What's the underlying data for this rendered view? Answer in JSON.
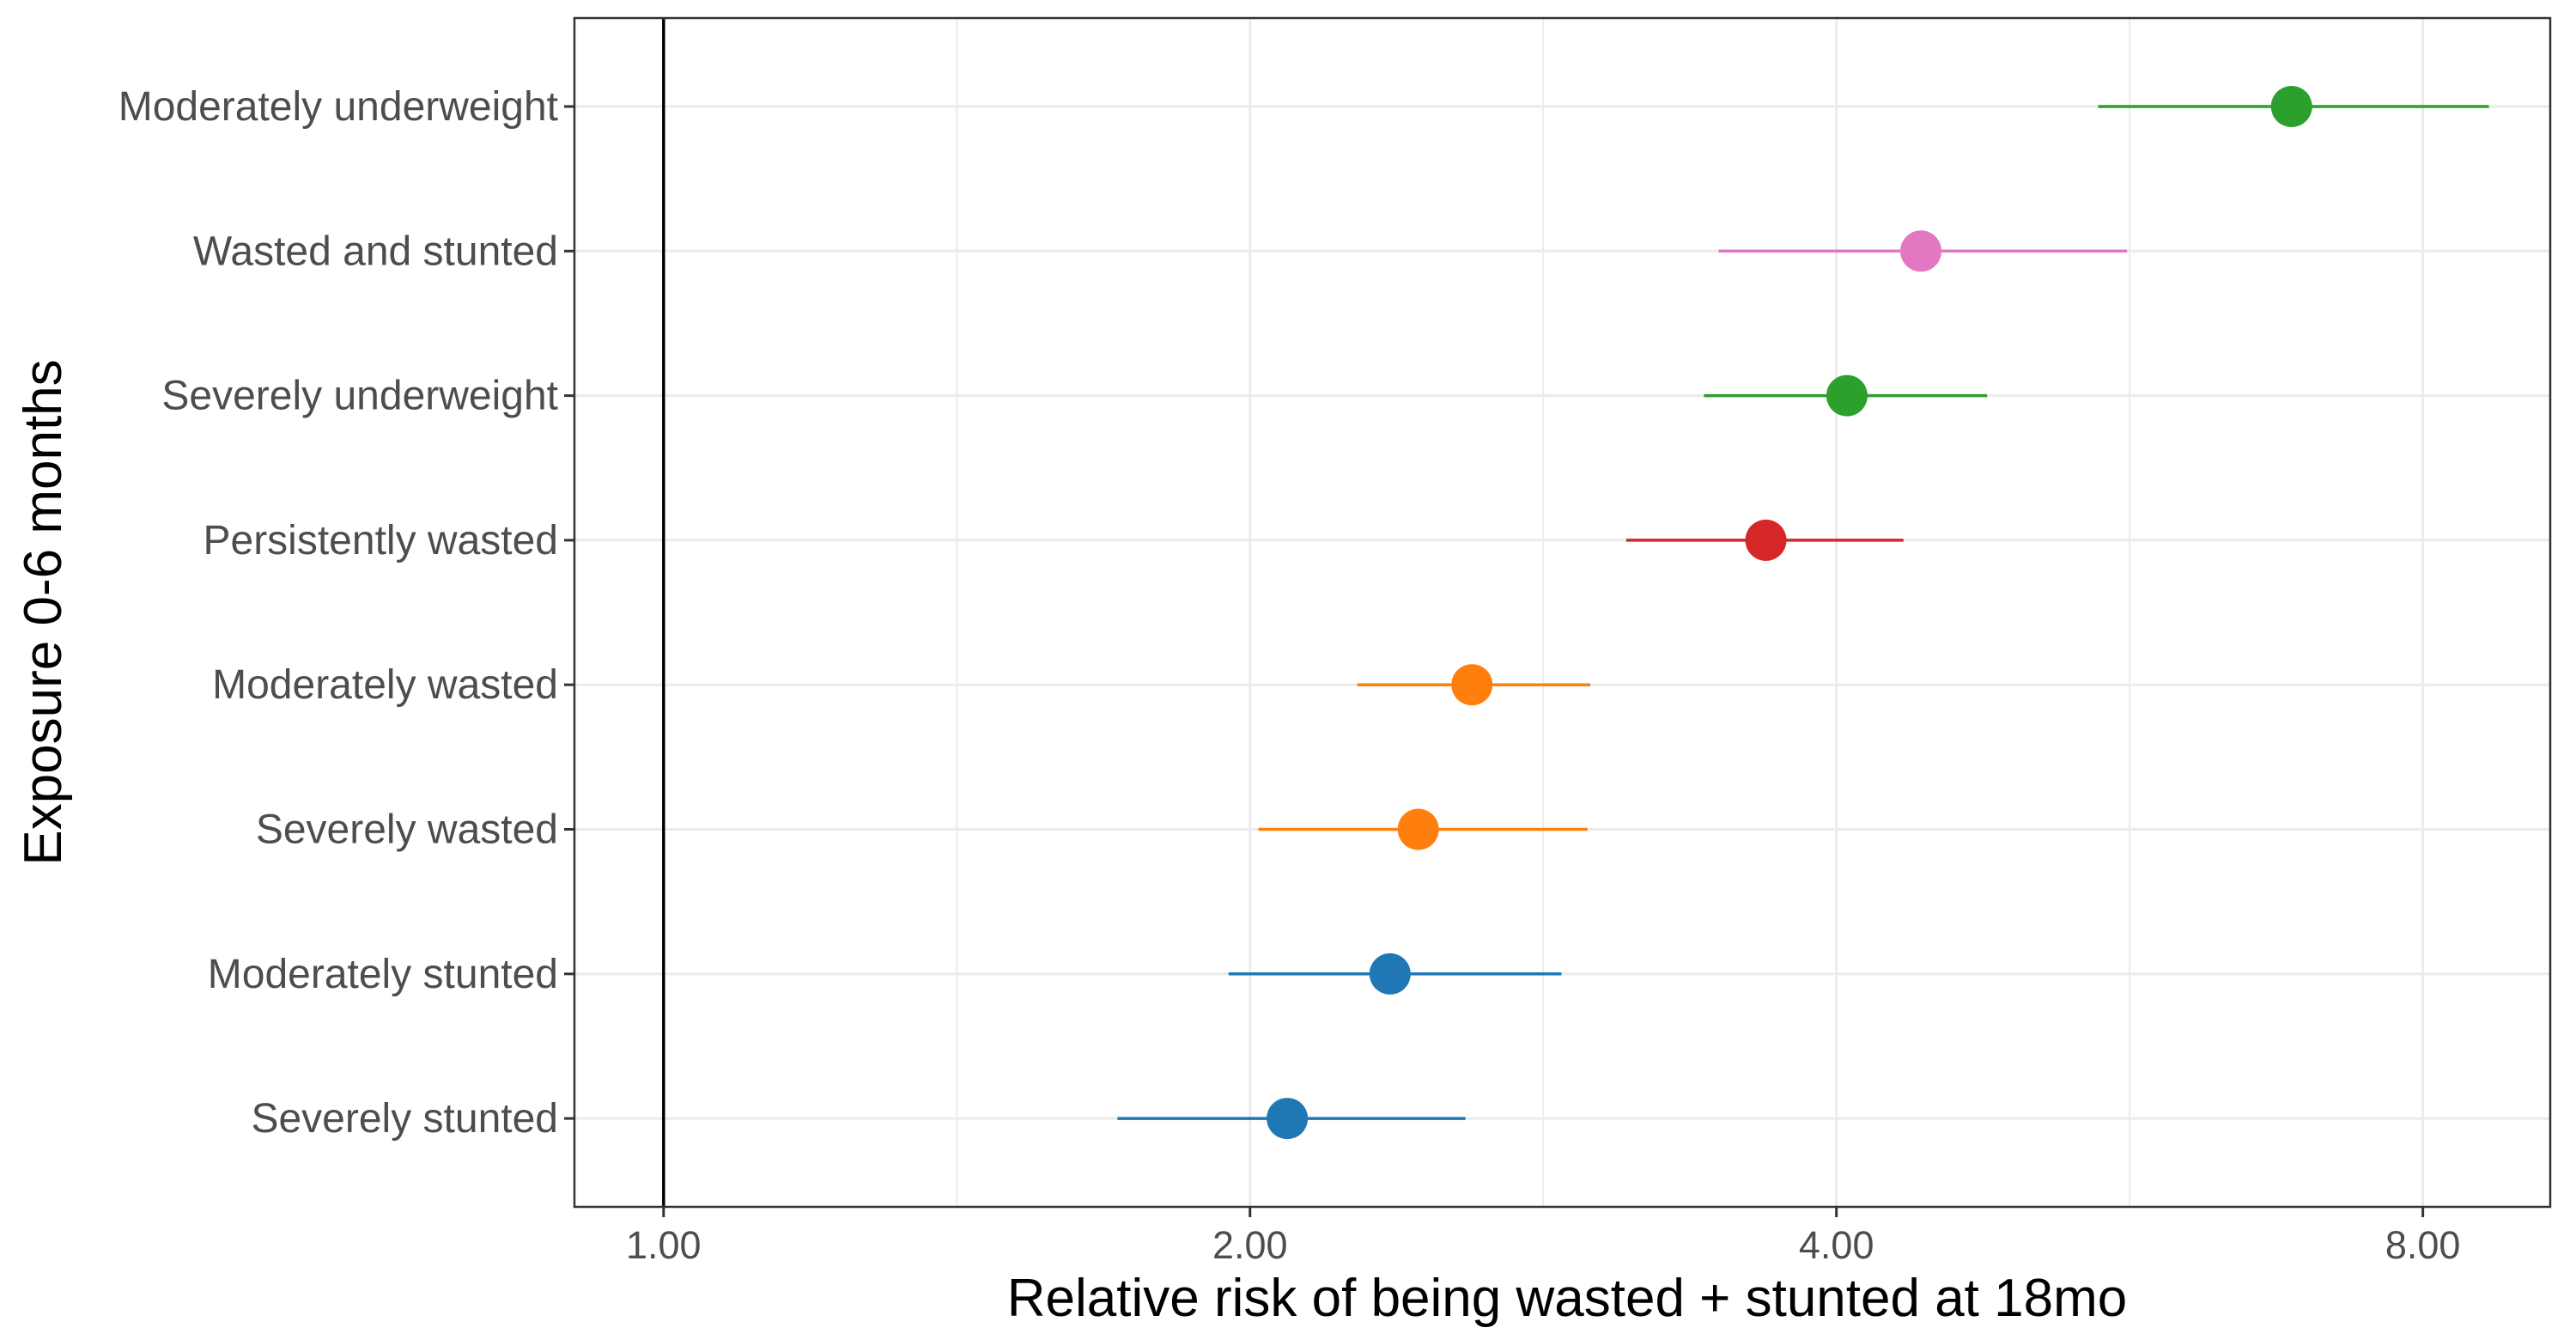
{
  "chart_data": {
    "type": "scatter",
    "subtype": "forest-plot",
    "title": "",
    "xlabel": "Relative risk of being wasted + stunted at 18mo",
    "ylabel": "Exposure 0-6 months",
    "x_scale": "log2",
    "xlim": [
      0.9,
      9.3
    ],
    "x_ticks": [
      1,
      2,
      4,
      8
    ],
    "x_tick_labels": [
      "1.00",
      "2.00",
      "4.00",
      "8.00"
    ],
    "reference_line": 1,
    "grid": true,
    "legend": "none",
    "categories": [
      "Moderately underweight",
      "Wasted and stunted",
      "Severely underweight",
      "Persistently wasted",
      "Moderately wasted",
      "Severely wasted",
      "Moderately stunted",
      "Severely stunted"
    ],
    "points": [
      {
        "category": "Moderately underweight",
        "estimate": 6.85,
        "lower": 5.45,
        "upper": 8.65,
        "color": "#2ca02c"
      },
      {
        "category": "Wasted and stunted",
        "estimate": 4.42,
        "lower": 3.48,
        "upper": 5.64,
        "color": "#e377c2"
      },
      {
        "category": "Severely underweight",
        "estimate": 4.05,
        "lower": 3.42,
        "upper": 4.78,
        "color": "#2ca02c"
      },
      {
        "category": "Persistently wasted",
        "estimate": 3.68,
        "lower": 3.12,
        "upper": 4.33,
        "color": "#d62728"
      },
      {
        "category": "Moderately wasted",
        "estimate": 2.6,
        "lower": 2.27,
        "upper": 2.99,
        "color": "#ff7f0e"
      },
      {
        "category": "Severely wasted",
        "estimate": 2.44,
        "lower": 2.02,
        "upper": 2.98,
        "color": "#ff7f0e"
      },
      {
        "category": "Moderately stunted",
        "estimate": 2.36,
        "lower": 1.95,
        "upper": 2.89,
        "color": "#1f77b4"
      },
      {
        "category": "Severely stunted",
        "estimate": 2.09,
        "lower": 1.71,
        "upper": 2.58,
        "color": "#1f77b4"
      }
    ]
  }
}
